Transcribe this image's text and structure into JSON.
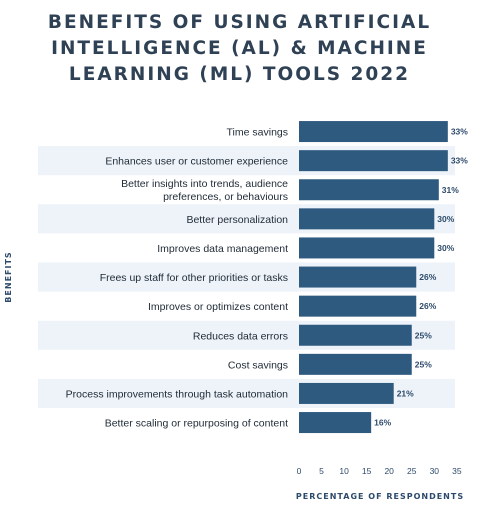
{
  "title_lines": [
    "BENEFITS OF USING ARTIFICIAL",
    "INTELLIGENCE (AL) & MACHINE",
    "LEARNING (ML) TOOLS 2022"
  ],
  "chart_data": {
    "type": "bar",
    "orientation": "horizontal",
    "title": "BENEFITS OF USING ARTIFICIAL INTELLIGENCE (AL) & MACHINE LEARNING (ML) TOOLS 2022",
    "xlabel": "PERCENTAGE OF RESPONDENTS",
    "ylabel": "BENEFITS",
    "xlim": [
      0,
      35
    ],
    "xticks": [
      0,
      5,
      10,
      15,
      20,
      25,
      30,
      35
    ],
    "categories": [
      "Time savings",
      "Enhances user or customer experience",
      "Better insights into trends, audience preferences, or behaviours",
      "Better personalization",
      "Improves data management",
      "Frees up staff for other priorities or tasks",
      "Improves or optimizes content",
      "Reduces data errors",
      "Cost savings",
      "Process improvements through task automation",
      "Better scaling or repurposing of content"
    ],
    "values": [
      33,
      33,
      31,
      30,
      30,
      26,
      26,
      25,
      25,
      21,
      16
    ],
    "value_labels": [
      "33%",
      "33%",
      "31%",
      "30%",
      "30%",
      "26%",
      "26%",
      "25%",
      "25%",
      "21%",
      "16%"
    ],
    "bar_color": "#2f5a80",
    "band_color": "#edf3f8",
    "grid": false,
    "legend": "none"
  }
}
